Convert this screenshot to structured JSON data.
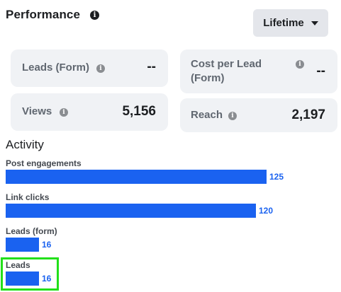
{
  "header": {
    "title": "Performance",
    "info_icon": "info-circle-icon"
  },
  "date_filter": {
    "selected": "Lifetime",
    "icon": "caret-down-icon"
  },
  "metrics": {
    "leads_form": {
      "label": "Leads (Form)",
      "value": "--"
    },
    "cost_per_lead": {
      "label_line1": "Cost per Lead",
      "label_line2": "(Form)",
      "value": "--"
    },
    "views": {
      "label": "Views",
      "value": "5,156"
    },
    "reach": {
      "label": "Reach",
      "value": "2,197"
    }
  },
  "activity": {
    "title": "Activity",
    "bar_color": "#1a62f0",
    "rows": [
      {
        "label": "Post engagements",
        "value": 125,
        "value_text": "125"
      },
      {
        "label": "Link clicks",
        "value": 120,
        "value_text": "120"
      },
      {
        "label": "Leads (form)",
        "value": 16,
        "value_text": "16"
      },
      {
        "label": "Leads",
        "value": 16,
        "value_text": "16"
      }
    ],
    "highlighted_row": "Leads",
    "highlight_color": "#22e01a"
  }
}
